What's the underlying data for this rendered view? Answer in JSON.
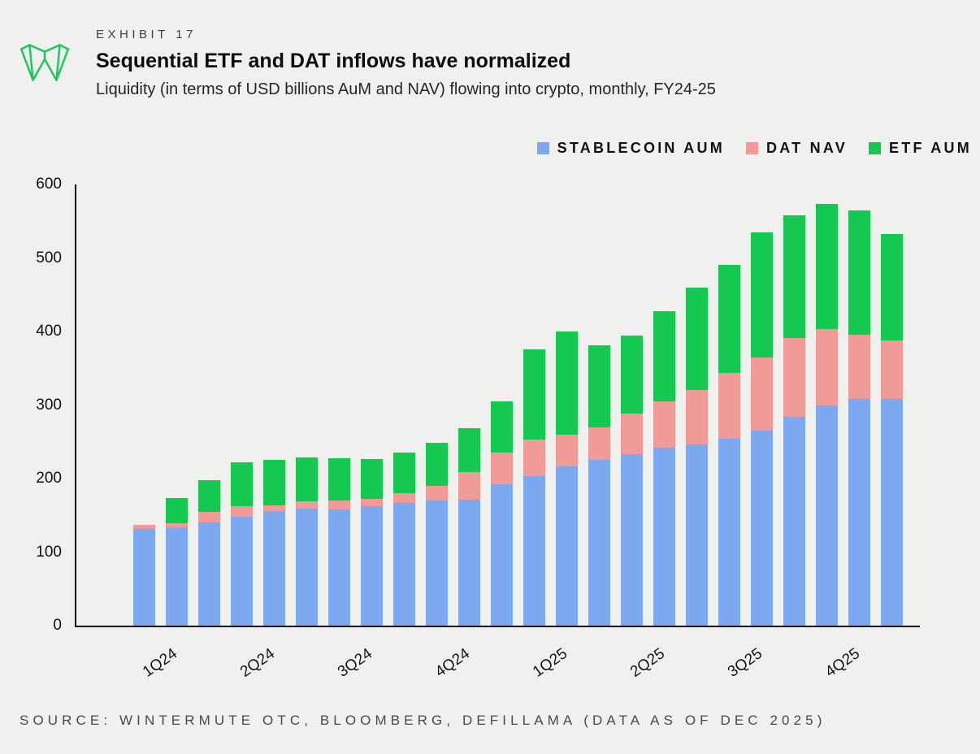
{
  "header": {
    "exhibit": "EXHIBIT 17",
    "title": "Sequential ETF and DAT inflows have normalized",
    "subtitle": "Liquidity (in terms of USD billions AuM and NAV) flowing into crypto, monthly, FY24-25"
  },
  "brand": {
    "logo_color": "#1ec85e"
  },
  "legend": [
    {
      "key": "stablecoin-aum",
      "label": "STABLECOIN AUM",
      "color": "#7ba8ef"
    },
    {
      "key": "dat-nav",
      "label": "DAT NAV",
      "color": "#f19b99"
    },
    {
      "key": "etf-aum",
      "label": "ETF AUM",
      "color": "#15c84f"
    }
  ],
  "source": "SOURCE: WINTERMUTE OTC, BLOOMBERG, DEFILLAMA (DATA AS OF DEC 2025)",
  "chart_data": {
    "type": "bar",
    "stacked": true,
    "title": "Sequential ETF and DAT inflows have normalized",
    "subtitle": "Liquidity (in terms of USD billions AuM and NAV) flowing into crypto, monthly, FY24-25",
    "xlabel": "",
    "ylabel": "USD billions",
    "ylim": [
      0,
      600
    ],
    "yticks": [
      0,
      100,
      200,
      300,
      400,
      500,
      600
    ],
    "grid": false,
    "legend_position": "top-right",
    "x_tick_labels": [
      "1Q24",
      "2Q24",
      "3Q24",
      "4Q24",
      "1Q25",
      "2Q25",
      "3Q25",
      "4Q25"
    ],
    "bars_per_group": 3,
    "series": [
      {
        "key": "stablecoin",
        "name": "STABLECOIN AUM",
        "color": "#7ba8ef",
        "values": [
          132,
          134,
          140,
          148,
          156,
          159,
          158,
          162,
          167,
          170,
          171,
          192,
          203,
          217,
          225,
          233,
          242,
          247,
          254,
          265,
          284,
          299,
          308,
          308
        ]
      },
      {
        "key": "dat",
        "name": "DAT NAV",
        "color": "#f19b99",
        "values": [
          5,
          5,
          15,
          15,
          8,
          10,
          12,
          10,
          13,
          20,
          38,
          43,
          50,
          43,
          45,
          55,
          63,
          73,
          90,
          100,
          107,
          104,
          88,
          80
        ]
      },
      {
        "key": "etf",
        "name": "ETF AUM",
        "color": "#15c84f",
        "values": [
          0,
          35,
          43,
          59,
          62,
          60,
          58,
          54,
          55,
          59,
          60,
          70,
          123,
          140,
          111,
          107,
          123,
          140,
          147,
          170,
          167,
          171,
          169,
          145
        ]
      }
    ]
  }
}
